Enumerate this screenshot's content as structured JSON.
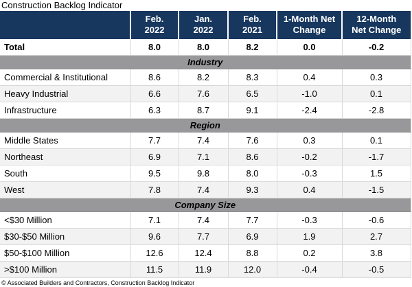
{
  "title": "Construction Backlog Indicator",
  "footer": "© Associated Builders and Contractors, Construction Backlog Indicator",
  "colors": {
    "header_bg": "#17375E",
    "header_text": "#FFFFFF",
    "section_bg": "#98989A",
    "row_alt_bg": "#F2F2F2",
    "border": "#D9D9D9"
  },
  "chart_data": {
    "type": "table",
    "title": "Construction Backlog Indicator",
    "columns": [
      {
        "line1": "Feb.",
        "line2": "2022"
      },
      {
        "line1": "Jan.",
        "line2": "2022"
      },
      {
        "line1": "Feb.",
        "line2": "2021"
      },
      {
        "line1": "1-Month Net",
        "line2": "Change"
      },
      {
        "line1": "12-Month",
        "line2": "Net Change"
      }
    ],
    "total_row": {
      "label": "Total",
      "values": [
        "8.0",
        "8.0",
        "8.2",
        "0.0",
        "-0.2"
      ]
    },
    "sections": [
      {
        "name": "Industry",
        "rows": [
          {
            "label": "Commercial & Institutional",
            "values": [
              "8.6",
              "8.2",
              "8.3",
              "0.4",
              "0.3"
            ]
          },
          {
            "label": "Heavy Industrial",
            "values": [
              "6.6",
              "7.6",
              "6.5",
              "-1.0",
              "0.1"
            ]
          },
          {
            "label": "Infrastructure",
            "values": [
              "6.3",
              "8.7",
              "9.1",
              "-2.4",
              "-2.8"
            ]
          }
        ]
      },
      {
        "name": "Region",
        "rows": [
          {
            "label": "Middle States",
            "values": [
              "7.7",
              "7.4",
              "7.6",
              "0.3",
              "0.1"
            ]
          },
          {
            "label": "Northeast",
            "values": [
              "6.9",
              "7.1",
              "8.6",
              "-0.2",
              "-1.7"
            ]
          },
          {
            "label": "South",
            "values": [
              "9.5",
              "9.8",
              "8.0",
              "-0.3",
              "1.5"
            ]
          },
          {
            "label": "West",
            "values": [
              "7.8",
              "7.4",
              "9.3",
              "0.4",
              "-1.5"
            ]
          }
        ]
      },
      {
        "name": "Company Size",
        "rows": [
          {
            "label": "<$30 Million",
            "values": [
              "7.1",
              "7.4",
              "7.7",
              "-0.3",
              "-0.6"
            ]
          },
          {
            "label": "$30-$50 Million",
            "values": [
              "9.6",
              "7.7",
              "6.9",
              "1.9",
              "2.7"
            ]
          },
          {
            "label": "$50-$100 Million",
            "values": [
              "12.6",
              "12.4",
              "8.8",
              "0.2",
              "3.8"
            ]
          },
          {
            "label": ">$100 Million",
            "values": [
              "11.5",
              "11.9",
              "12.0",
              "-0.4",
              "-0.5"
            ]
          }
        ]
      }
    ],
    "footer": "© Associated Builders and Contractors, Construction Backlog Indicator"
  }
}
